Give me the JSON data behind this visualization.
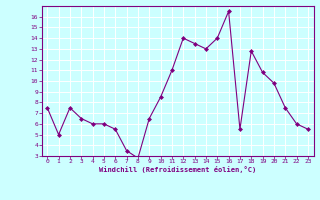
{
  "x": [
    0,
    1,
    2,
    3,
    4,
    5,
    6,
    7,
    8,
    9,
    10,
    11,
    12,
    13,
    14,
    15,
    16,
    17,
    18,
    19,
    20,
    21,
    22,
    23
  ],
  "y": [
    7.5,
    5.0,
    7.5,
    6.5,
    6.0,
    6.0,
    5.5,
    3.5,
    2.8,
    6.5,
    8.5,
    11.0,
    14.0,
    13.5,
    13.0,
    14.0,
    16.5,
    5.5,
    12.8,
    10.8,
    9.8,
    7.5,
    6.0,
    5.5
  ],
  "xlabel": "Windchill (Refroidissement éolien,°C)",
  "ylim": [
    3,
    17
  ],
  "xlim": [
    -0.5,
    23.5
  ],
  "yticks": [
    3,
    4,
    5,
    6,
    7,
    8,
    9,
    10,
    11,
    12,
    13,
    14,
    15,
    16
  ],
  "xticks": [
    0,
    1,
    2,
    3,
    4,
    5,
    6,
    7,
    8,
    9,
    10,
    11,
    12,
    13,
    14,
    15,
    16,
    17,
    18,
    19,
    20,
    21,
    22,
    23
  ],
  "line_color": "#800080",
  "marker_color": "#800080",
  "bg_color": "#ccffff",
  "grid_color": "#ffffff",
  "text_color": "#800080",
  "spine_color": "#800080"
}
